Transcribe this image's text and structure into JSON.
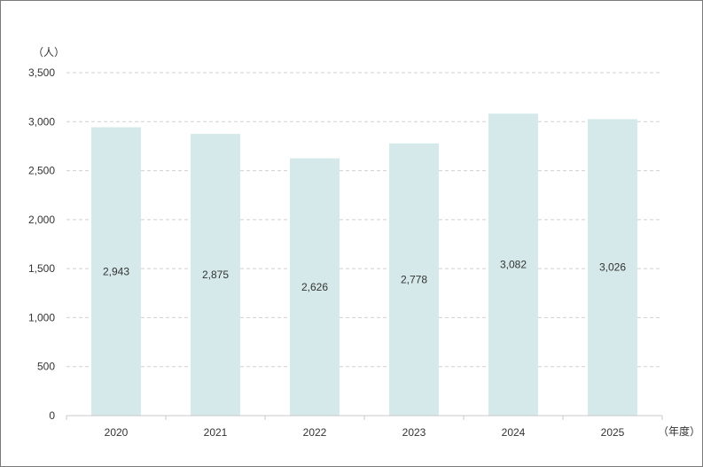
{
  "chart_data": {
    "type": "bar",
    "y_unit_label": "（人）",
    "x_unit_label": "（年度）",
    "categories": [
      "2020",
      "2021",
      "2022",
      "2023",
      "2024",
      "2025"
    ],
    "values": [
      2943,
      2875,
      2626,
      2778,
      3082,
      3026
    ],
    "data_labels": [
      "2,943",
      "2,875",
      "2,626",
      "2,778",
      "3,082",
      "3,026"
    ],
    "ylim": [
      0,
      3500
    ],
    "yticks": [
      0,
      500,
      1000,
      1500,
      2000,
      2500,
      3000,
      3500
    ],
    "ytick_labels": [
      "0",
      "500",
      "1,000",
      "1,500",
      "2,000",
      "2,500",
      "3,000",
      "3,500"
    ],
    "grid": true,
    "grid_style": "dashed",
    "legend": "none",
    "bar_color": "#d6e9ea",
    "grid_color": "#d0d0d0",
    "axis_color": "#c8c8c8"
  }
}
